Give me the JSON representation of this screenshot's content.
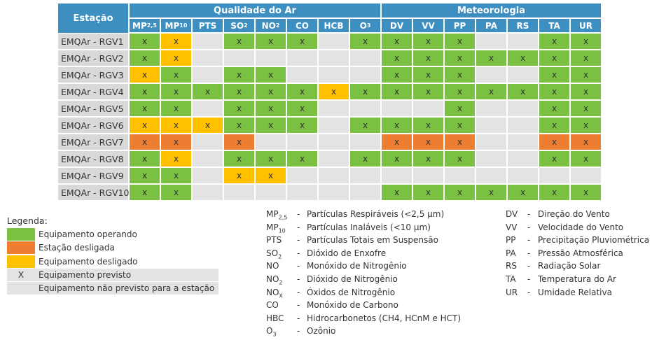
{
  "table": {
    "station_header": "Estação",
    "groups": [
      {
        "label": "Qualidade do Ar",
        "span": 8
      },
      {
        "label": "Meteorologia",
        "span": 7
      }
    ],
    "columns": [
      {
        "base": "MP",
        "sub": "2,5"
      },
      {
        "base": "MP",
        "sub": "10"
      },
      "PTS",
      {
        "base": "SO",
        "sub": "2"
      },
      {
        "base": "NO",
        "sub": "2"
      },
      "CO",
      "HCB",
      {
        "base": "O",
        "sub": "3"
      },
      "DV",
      "VV",
      "PP",
      "PA",
      "RS",
      "TA",
      "UR"
    ],
    "rows": [
      {
        "station": "EMQAr - RGV1",
        "cells": [
          {
            "fill": "#7ac143",
            "text": "x"
          },
          {
            "fill": "#ffc000",
            "text": "x"
          },
          {
            "fill": "#e3e3e3"
          },
          {
            "fill": "#7ac143",
            "text": "x"
          },
          {
            "fill": "#7ac143",
            "text": "x"
          },
          {
            "fill": "#7ac143",
            "text": "x"
          },
          {
            "fill": "#e3e3e3"
          },
          {
            "fill": "#7ac143",
            "text": "x"
          },
          {
            "fill": "#7ac143",
            "text": "x"
          },
          {
            "fill": "#7ac143",
            "text": "x"
          },
          {
            "fill": "#7ac143",
            "text": "x"
          },
          {
            "fill": "#e3e3e3"
          },
          {
            "fill": "#e3e3e3"
          },
          {
            "fill": "#7ac143",
            "text": "x"
          },
          {
            "fill": "#7ac143",
            "text": "x"
          }
        ]
      },
      {
        "station": "EMQAr - RGV2",
        "cells": [
          {
            "fill": "#7ac143",
            "text": "x"
          },
          {
            "fill": "#ffc000",
            "text": "x"
          },
          {
            "fill": "#e3e3e3"
          },
          {
            "fill": "#e3e3e3"
          },
          {
            "fill": "#e3e3e3"
          },
          {
            "fill": "#e3e3e3"
          },
          {
            "fill": "#e3e3e3"
          },
          {
            "fill": "#e3e3e3"
          },
          {
            "fill": "#7ac143",
            "text": "x"
          },
          {
            "fill": "#7ac143",
            "text": "x"
          },
          {
            "fill": "#7ac143",
            "text": "x"
          },
          {
            "fill": "#7ac143",
            "text": "x"
          },
          {
            "fill": "#7ac143",
            "text": "x"
          },
          {
            "fill": "#7ac143",
            "text": "x"
          },
          {
            "fill": "#7ac143",
            "text": "x"
          }
        ]
      },
      {
        "station": "EMQAr - RGV3",
        "cells": [
          {
            "fill": "#ffc000",
            "text": "x"
          },
          {
            "fill": "#7ac143",
            "text": "x"
          },
          {
            "fill": "#e3e3e3"
          },
          {
            "fill": "#7ac143",
            "text": "x"
          },
          {
            "fill": "#7ac143",
            "text": "x"
          },
          {
            "fill": "#e3e3e3"
          },
          {
            "fill": "#e3e3e3"
          },
          {
            "fill": "#e3e3e3"
          },
          {
            "fill": "#7ac143",
            "text": "x"
          },
          {
            "fill": "#7ac143",
            "text": "x"
          },
          {
            "fill": "#7ac143",
            "text": "x"
          },
          {
            "fill": "#e3e3e3"
          },
          {
            "fill": "#e3e3e3"
          },
          {
            "fill": "#7ac143",
            "text": "x"
          },
          {
            "fill": "#7ac143",
            "text": "x"
          }
        ]
      },
      {
        "station": "EMQAr - RGV4",
        "cells": [
          {
            "fill": "#7ac143",
            "text": "x"
          },
          {
            "fill": "#7ac143",
            "text": "x"
          },
          {
            "fill": "#7ac143",
            "text": "x"
          },
          {
            "fill": "#7ac143",
            "text": "x"
          },
          {
            "fill": "#7ac143",
            "text": "x"
          },
          {
            "fill": "#7ac143",
            "text": "x"
          },
          {
            "fill": "#ffc000",
            "text": "x"
          },
          {
            "fill": "#7ac143",
            "text": "x"
          },
          {
            "fill": "#7ac143",
            "text": "x"
          },
          {
            "fill": "#7ac143",
            "text": "x"
          },
          {
            "fill": "#7ac143",
            "text": "x"
          },
          {
            "fill": "#7ac143",
            "text": "x"
          },
          {
            "fill": "#7ac143",
            "text": "x"
          },
          {
            "fill": "#7ac143",
            "text": "x"
          },
          {
            "fill": "#7ac143",
            "text": "x"
          }
        ]
      },
      {
        "station": "EMQAr - RGV5",
        "cells": [
          {
            "fill": "#7ac143",
            "text": "x"
          },
          {
            "fill": "#7ac143",
            "text": "x"
          },
          {
            "fill": "#e3e3e3"
          },
          {
            "fill": "#7ac143",
            "text": "x"
          },
          {
            "fill": "#7ac143",
            "text": "x"
          },
          {
            "fill": "#7ac143",
            "text": "x"
          },
          {
            "fill": "#e3e3e3"
          },
          {
            "fill": "#e3e3e3"
          },
          {
            "fill": "#e3e3e3"
          },
          {
            "fill": "#e3e3e3"
          },
          {
            "fill": "#7ac143",
            "text": "x"
          },
          {
            "fill": "#e3e3e3"
          },
          {
            "fill": "#e3e3e3"
          },
          {
            "fill": "#7ac143",
            "text": "x"
          },
          {
            "fill": "#7ac143",
            "text": "x"
          }
        ]
      },
      {
        "station": "EMQAr - RGV6",
        "cells": [
          {
            "fill": "#ffc000",
            "text": "x"
          },
          {
            "fill": "#ffc000",
            "text": "x"
          },
          {
            "fill": "#ffc000",
            "text": "x"
          },
          {
            "fill": "#7ac143",
            "text": "x"
          },
          {
            "fill": "#7ac143",
            "text": "x"
          },
          {
            "fill": "#7ac143",
            "text": "x"
          },
          {
            "fill": "#e3e3e3"
          },
          {
            "fill": "#7ac143",
            "text": "x"
          },
          {
            "fill": "#7ac143",
            "text": "x"
          },
          {
            "fill": "#7ac143",
            "text": "x"
          },
          {
            "fill": "#7ac143",
            "text": "x"
          },
          {
            "fill": "#e3e3e3"
          },
          {
            "fill": "#e3e3e3"
          },
          {
            "fill": "#7ac143",
            "text": "x"
          },
          {
            "fill": "#7ac143",
            "text": "x"
          }
        ]
      },
      {
        "station": "EMQAr - RGV7",
        "cells": [
          {
            "fill": "#ed7d31",
            "text": "x"
          },
          {
            "fill": "#ed7d31",
            "text": "x"
          },
          {
            "fill": "#e3e3e3"
          },
          {
            "fill": "#ed7d31",
            "text": "x"
          },
          {
            "fill": "#e3e3e3"
          },
          {
            "fill": "#e3e3e3"
          },
          {
            "fill": "#e3e3e3"
          },
          {
            "fill": "#e3e3e3"
          },
          {
            "fill": "#ed7d31",
            "text": "x"
          },
          {
            "fill": "#ed7d31",
            "text": "x"
          },
          {
            "fill": "#ed7d31",
            "text": "x"
          },
          {
            "fill": "#e3e3e3"
          },
          {
            "fill": "#e3e3e3"
          },
          {
            "fill": "#ed7d31",
            "text": "x"
          },
          {
            "fill": "#ed7d31",
            "text": "x"
          }
        ]
      },
      {
        "station": "EMQAr - RGV8",
        "cells": [
          {
            "fill": "#7ac143",
            "text": "x"
          },
          {
            "fill": "#ffc000",
            "text": "x"
          },
          {
            "fill": "#e3e3e3"
          },
          {
            "fill": "#7ac143",
            "text": "x"
          },
          {
            "fill": "#7ac143",
            "text": "x"
          },
          {
            "fill": "#7ac143",
            "text": "x"
          },
          {
            "fill": "#e3e3e3"
          },
          {
            "fill": "#7ac143",
            "text": "x"
          },
          {
            "fill": "#7ac143",
            "text": "x"
          },
          {
            "fill": "#7ac143",
            "text": "x"
          },
          {
            "fill": "#7ac143",
            "text": "x"
          },
          {
            "fill": "#e3e3e3"
          },
          {
            "fill": "#e3e3e3"
          },
          {
            "fill": "#7ac143",
            "text": "x"
          },
          {
            "fill": "#7ac143",
            "text": "x"
          }
        ]
      },
      {
        "station": "EMQAr - RGV9",
        "cells": [
          {
            "fill": "#7ac143",
            "text": "x"
          },
          {
            "fill": "#7ac143",
            "text": "x"
          },
          {
            "fill": "#e3e3e3"
          },
          {
            "fill": "#ffc000",
            "text": "x"
          },
          {
            "fill": "#ffc000",
            "text": "x"
          },
          {
            "fill": "#e3e3e3"
          },
          {
            "fill": "#e3e3e3"
          },
          {
            "fill": "#e3e3e3"
          },
          {
            "fill": "#e3e3e3"
          },
          {
            "fill": "#e3e3e3"
          },
          {
            "fill": "#e3e3e3"
          },
          {
            "fill": "#e3e3e3"
          },
          {
            "fill": "#e3e3e3"
          },
          {
            "fill": "#e3e3e3"
          },
          {
            "fill": "#e3e3e3"
          }
        ]
      },
      {
        "station": "EMQAr - RGV10",
        "cells": [
          {
            "fill": "#7ac143",
            "text": "x"
          },
          {
            "fill": "#7ac143",
            "text": "x"
          },
          {
            "fill": "#e3e3e3"
          },
          {
            "fill": "#e3e3e3"
          },
          {
            "fill": "#e3e3e3"
          },
          {
            "fill": "#e3e3e3"
          },
          {
            "fill": "#e3e3e3"
          },
          {
            "fill": "#e3e3e3"
          },
          {
            "fill": "#7ac143",
            "text": "x"
          },
          {
            "fill": "#7ac143",
            "text": "x"
          },
          {
            "fill": "#7ac143",
            "text": "x"
          },
          {
            "fill": "#7ac143",
            "text": "x"
          },
          {
            "fill": "#7ac143",
            "text": "x"
          },
          {
            "fill": "#7ac143",
            "text": "x"
          },
          {
            "fill": "#7ac143",
            "text": "x"
          }
        ]
      }
    ]
  },
  "legend": {
    "title": "Legenda:",
    "items": [
      {
        "color": "#7ac143",
        "label": "Equipamento operando"
      },
      {
        "color": "#ed7d31",
        "label": "Estação desligada"
      },
      {
        "color": "#ffc000",
        "label": "Equipamento desligado"
      },
      {
        "color": "#e3e3e3",
        "symbol": "X",
        "label": "Equipamento previsto"
      },
      {
        "color": "#e3e3e3",
        "label": "Equipamento não previsto para a estação"
      }
    ]
  },
  "abbreviations": {
    "separator": "-",
    "columns": [
      [
        {
          "abbr": {
            "base": "MP",
            "sub": "2,5"
          },
          "desc": "Partículas Respiráveis (<2,5 µm)"
        },
        {
          "abbr": {
            "base": "MP",
            "sub": "10"
          },
          "desc": "Partículas Inaláveis (<10 µm)"
        },
        {
          "abbr": "PTS",
          "desc": "Partículas Totais em Suspensão"
        },
        {
          "abbr": {
            "base": "SO",
            "sub": "2"
          },
          "desc": "Dióxido de Enxofre"
        },
        {
          "abbr": "NO",
          "desc": "Monóxido de Nitrogênio"
        },
        {
          "abbr": {
            "base": "NO",
            "sub": "2"
          },
          "desc": "Dióxido de Nitrogênio"
        },
        {
          "abbr": {
            "base": "NO",
            "sub": "X"
          },
          "desc": "Óxidos de Nitrogênio"
        },
        {
          "abbr": "CO",
          "desc": "Monóxido de Carbono"
        },
        {
          "abbr": "HBC",
          "desc": "Hidrocarbonetos (CH4, HCnM e HCT)"
        },
        {
          "abbr": {
            "base": "O",
            "sub": "3"
          },
          "desc": "Ozônio"
        }
      ],
      [
        {
          "abbr": "DV",
          "desc": "Direção do Vento"
        },
        {
          "abbr": "VV",
          "desc": "Velocidade do Vento"
        },
        {
          "abbr": "PP",
          "desc": "Precipitação Pluviométrica"
        },
        {
          "abbr": "PA",
          "desc": "Pressão Atmosférica"
        },
        {
          "abbr": "RS",
          "desc": "Radiação Solar"
        },
        {
          "abbr": "TA",
          "desc": "Temperatura do Ar"
        },
        {
          "abbr": "UR",
          "desc": "Umidade Relativa"
        }
      ]
    ]
  }
}
